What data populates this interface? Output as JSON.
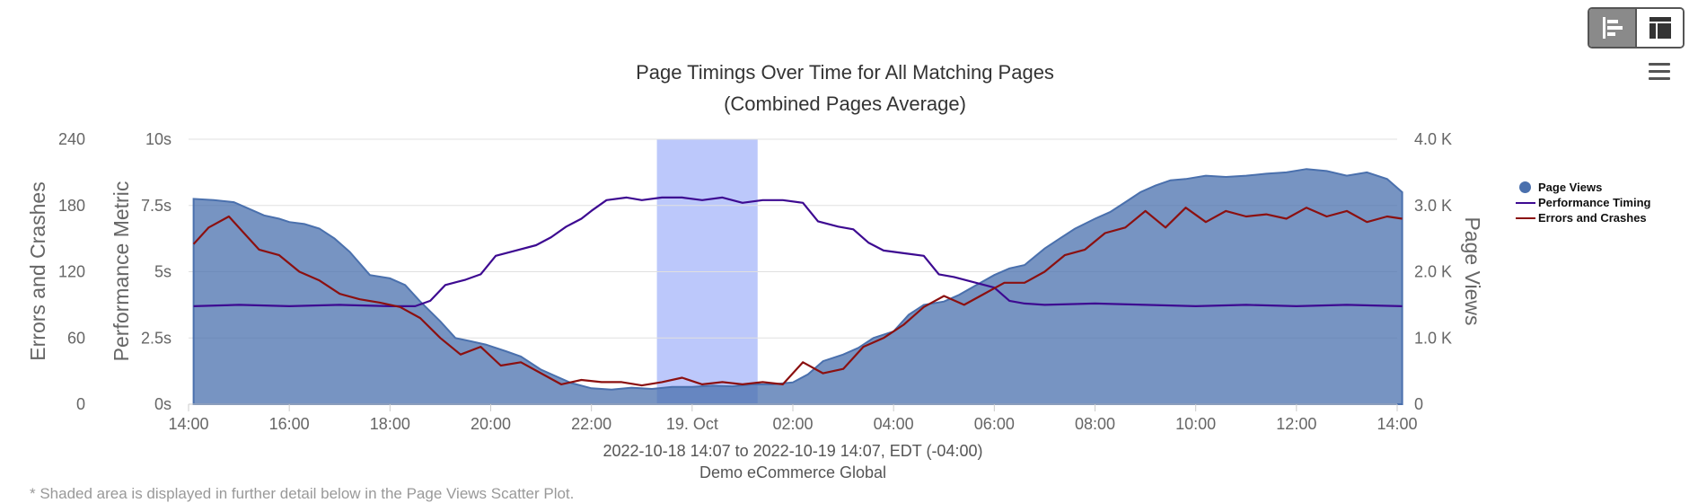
{
  "toolbar": {
    "bar_view_icon": "horizontal-bars-icon",
    "table_view_icon": "layout-grid-icon",
    "menu_icon": "hamburger-menu-icon"
  },
  "footnote": "* Shaded area is displayed in further detail below in the Page Views Scatter Plot.",
  "chart_data": {
    "type": "area",
    "title": "Page Timings Over Time for All Matching Pages",
    "subtitle": "(Combined Pages Average)",
    "x_axis": {
      "ticks": [
        "14:00",
        "16:00",
        "18:00",
        "20:00",
        "22:00",
        "19. Oct",
        "02:00",
        "04:00",
        "06:00",
        "08:00",
        "10:00",
        "12:00",
        "14:00"
      ],
      "tick_hours": [
        0,
        2,
        4,
        6,
        8,
        10,
        12,
        14,
        16,
        18,
        20,
        22,
        24
      ],
      "range_hours": [
        0,
        24
      ],
      "caption": "2022-10-18 14:07 to 2022-10-19 14:07, EDT (-04:00)",
      "caption2": "Demo eCommerce Global"
    },
    "y_axes": {
      "errors": {
        "title": "Errors and Crashes",
        "ticks": [
          "0",
          "60",
          "120",
          "180",
          "240"
        ],
        "range": [
          0,
          240
        ]
      },
      "performance": {
        "title": "Performance Metric",
        "ticks": [
          "0s",
          "2.5s",
          "5s",
          "7.5s",
          "10s"
        ],
        "range": [
          0,
          10
        ]
      },
      "page_views": {
        "title": "Page Views",
        "ticks": [
          "0",
          "1.0 K",
          "2.0 K",
          "3.0 K",
          "4.0 K"
        ],
        "range": [
          0,
          4000
        ]
      }
    },
    "highlight_band_hours": [
      9.3,
      11.3
    ],
    "legend_placement": "right",
    "grid": true,
    "colors": {
      "page_views": "#4a70ad",
      "performance": "#3d0a91",
      "errors": "#8b1010",
      "band": "#bcc8fb"
    },
    "series": [
      {
        "name": "Page Views",
        "axis": "page_views",
        "type": "area",
        "points": [
          [
            0.1,
            3100
          ],
          [
            0.5,
            3080
          ],
          [
            0.9,
            3050
          ],
          [
            1.2,
            2950
          ],
          [
            1.5,
            2850
          ],
          [
            1.8,
            2800
          ],
          [
            2.0,
            2750
          ],
          [
            2.3,
            2720
          ],
          [
            2.6,
            2650
          ],
          [
            2.9,
            2500
          ],
          [
            3.2,
            2300
          ],
          [
            3.6,
            1950
          ],
          [
            4.0,
            1900
          ],
          [
            4.3,
            1800
          ],
          [
            4.6,
            1550
          ],
          [
            5.0,
            1250
          ],
          [
            5.3,
            1000
          ],
          [
            5.6,
            950
          ],
          [
            5.9,
            900
          ],
          [
            6.3,
            800
          ],
          [
            6.6,
            720
          ],
          [
            7.0,
            520
          ],
          [
            7.3,
            420
          ],
          [
            7.6,
            320
          ],
          [
            8.0,
            240
          ],
          [
            8.4,
            220
          ],
          [
            8.8,
            250
          ],
          [
            9.2,
            230
          ],
          [
            9.6,
            260
          ],
          [
            10.0,
            260
          ],
          [
            10.4,
            280
          ],
          [
            10.8,
            270
          ],
          [
            11.2,
            300
          ],
          [
            11.6,
            300
          ],
          [
            12.0,
            330
          ],
          [
            12.3,
            450
          ],
          [
            12.6,
            650
          ],
          [
            13.0,
            750
          ],
          [
            13.3,
            850
          ],
          [
            13.6,
            1000
          ],
          [
            14.0,
            1100
          ],
          [
            14.3,
            1350
          ],
          [
            14.6,
            1500
          ],
          [
            15.0,
            1550
          ],
          [
            15.3,
            1650
          ],
          [
            15.6,
            1780
          ],
          [
            16.0,
            1950
          ],
          [
            16.3,
            2050
          ],
          [
            16.6,
            2100
          ],
          [
            17.0,
            2350
          ],
          [
            17.3,
            2500
          ],
          [
            17.6,
            2650
          ],
          [
            18.0,
            2800
          ],
          [
            18.3,
            2900
          ],
          [
            18.6,
            3050
          ],
          [
            18.9,
            3200
          ],
          [
            19.2,
            3300
          ],
          [
            19.5,
            3380
          ],
          [
            19.8,
            3400
          ],
          [
            20.2,
            3450
          ],
          [
            20.6,
            3430
          ],
          [
            21.0,
            3450
          ],
          [
            21.4,
            3480
          ],
          [
            21.8,
            3500
          ],
          [
            22.2,
            3550
          ],
          [
            22.6,
            3520
          ],
          [
            23.0,
            3450
          ],
          [
            23.4,
            3500
          ],
          [
            23.8,
            3400
          ],
          [
            24.1,
            3200
          ]
        ]
      },
      {
        "name": "Performance Timing",
        "axis": "performance",
        "type": "line",
        "points": [
          [
            0.1,
            3.7
          ],
          [
            1.0,
            3.75
          ],
          [
            2.0,
            3.7
          ],
          [
            3.0,
            3.75
          ],
          [
            4.0,
            3.7
          ],
          [
            4.5,
            3.7
          ],
          [
            4.8,
            3.9
          ],
          [
            5.1,
            4.5
          ],
          [
            5.5,
            4.7
          ],
          [
            5.8,
            4.9
          ],
          [
            6.1,
            5.6
          ],
          [
            6.5,
            5.8
          ],
          [
            6.9,
            6.0
          ],
          [
            7.2,
            6.3
          ],
          [
            7.5,
            6.7
          ],
          [
            7.8,
            7.0
          ],
          [
            8.0,
            7.3
          ],
          [
            8.3,
            7.7
          ],
          [
            8.7,
            7.8
          ],
          [
            9.0,
            7.7
          ],
          [
            9.4,
            7.8
          ],
          [
            9.8,
            7.8
          ],
          [
            10.2,
            7.7
          ],
          [
            10.6,
            7.8
          ],
          [
            11.0,
            7.6
          ],
          [
            11.4,
            7.7
          ],
          [
            11.8,
            7.7
          ],
          [
            12.2,
            7.6
          ],
          [
            12.5,
            6.9
          ],
          [
            12.9,
            6.7
          ],
          [
            13.2,
            6.6
          ],
          [
            13.5,
            6.1
          ],
          [
            13.8,
            5.8
          ],
          [
            14.2,
            5.7
          ],
          [
            14.6,
            5.6
          ],
          [
            14.9,
            4.9
          ],
          [
            15.2,
            4.8
          ],
          [
            15.6,
            4.6
          ],
          [
            16.0,
            4.4
          ],
          [
            16.3,
            3.9
          ],
          [
            16.6,
            3.8
          ],
          [
            17.0,
            3.75
          ],
          [
            18.0,
            3.8
          ],
          [
            19.0,
            3.75
          ],
          [
            20.0,
            3.7
          ],
          [
            21.0,
            3.75
          ],
          [
            22.0,
            3.7
          ],
          [
            23.0,
            3.75
          ],
          [
            24.1,
            3.7
          ]
        ]
      },
      {
        "name": "Errors and Crashes",
        "axis": "errors",
        "type": "line",
        "points": [
          [
            0.1,
            145
          ],
          [
            0.4,
            160
          ],
          [
            0.8,
            170
          ],
          [
            1.1,
            155
          ],
          [
            1.4,
            140
          ],
          [
            1.8,
            135
          ],
          [
            2.2,
            120
          ],
          [
            2.6,
            112
          ],
          [
            3.0,
            100
          ],
          [
            3.4,
            95
          ],
          [
            3.8,
            92
          ],
          [
            4.2,
            88
          ],
          [
            4.6,
            78
          ],
          [
            5.0,
            60
          ],
          [
            5.4,
            45
          ],
          [
            5.8,
            52
          ],
          [
            6.2,
            35
          ],
          [
            6.6,
            38
          ],
          [
            7.0,
            28
          ],
          [
            7.4,
            18
          ],
          [
            7.8,
            22
          ],
          [
            8.2,
            20
          ],
          [
            8.6,
            20
          ],
          [
            9.0,
            17
          ],
          [
            9.4,
            20
          ],
          [
            9.8,
            24
          ],
          [
            10.2,
            18
          ],
          [
            10.6,
            20
          ],
          [
            11.0,
            18
          ],
          [
            11.4,
            20
          ],
          [
            11.8,
            18
          ],
          [
            12.2,
            38
          ],
          [
            12.6,
            28
          ],
          [
            13.0,
            32
          ],
          [
            13.4,
            52
          ],
          [
            13.8,
            60
          ],
          [
            14.2,
            72
          ],
          [
            14.6,
            88
          ],
          [
            15.0,
            98
          ],
          [
            15.4,
            90
          ],
          [
            15.8,
            100
          ],
          [
            16.2,
            110
          ],
          [
            16.6,
            110
          ],
          [
            17.0,
            120
          ],
          [
            17.4,
            135
          ],
          [
            17.8,
            140
          ],
          [
            18.2,
            155
          ],
          [
            18.6,
            160
          ],
          [
            19.0,
            175
          ],
          [
            19.4,
            160
          ],
          [
            19.8,
            178
          ],
          [
            20.2,
            165
          ],
          [
            20.6,
            175
          ],
          [
            21.0,
            170
          ],
          [
            21.4,
            172
          ],
          [
            21.8,
            168
          ],
          [
            22.2,
            178
          ],
          [
            22.6,
            170
          ],
          [
            23.0,
            175
          ],
          [
            23.4,
            165
          ],
          [
            23.8,
            170
          ],
          [
            24.1,
            168
          ]
        ]
      }
    ]
  }
}
